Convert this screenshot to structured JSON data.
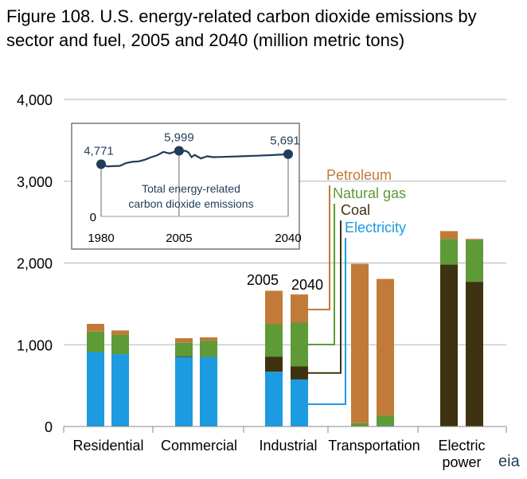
{
  "title": "Figure 108. U.S. energy-related carbon dioxide emissions by sector and fuel, 2005 and 2040 (million metric tons)",
  "logo_text": "eia",
  "colors": {
    "Petroleum": "#c27a38",
    "Natural gas": "#5e9a35",
    "Coal": "#3f3210",
    "Electricity": "#1c9be0",
    "inset_line": "#1f3d5a",
    "grid": "#b3b3b3"
  },
  "chart_data": {
    "type": "bar",
    "stacked": true,
    "categories": [
      "Residential",
      "Commercial",
      "Industrial",
      "Transportation",
      "Electric power"
    ],
    "category_lines": [
      [
        "Residential"
      ],
      [
        "Commercial"
      ],
      [
        "Industrial"
      ],
      [
        "Transportation"
      ],
      [
        "Electric",
        "power"
      ]
    ],
    "years": [
      "2005",
      "2040"
    ],
    "ylim": [
      0,
      4000
    ],
    "yticks": [
      0,
      1000,
      2000,
      3000,
      4000
    ],
    "ytick_labels": [
      "0",
      "1,000",
      "2,000",
      "3,000",
      "4,000"
    ],
    "stack_order": [
      "Electricity",
      "Coal",
      "Natural gas",
      "Petroleum"
    ],
    "legend_order": [
      "Petroleum",
      "Natural gas",
      "Coal",
      "Electricity"
    ],
    "bars": [
      {
        "sector": "Residential",
        "year": "2005",
        "Electricity": 910,
        "Coal": 0,
        "Natural gas": 250,
        "Petroleum": 95
      },
      {
        "sector": "Residential",
        "year": "2040",
        "Electricity": 885,
        "Coal": 0,
        "Natural gas": 235,
        "Petroleum": 55
      },
      {
        "sector": "Commercial",
        "year": "2005",
        "Electricity": 850,
        "Coal": 10,
        "Natural gas": 165,
        "Petroleum": 55
      },
      {
        "sector": "Commercial",
        "year": "2040",
        "Electricity": 850,
        "Coal": 5,
        "Natural gas": 195,
        "Petroleum": 40
      },
      {
        "sector": "Industrial",
        "year": "2005",
        "Electricity": 670,
        "Coal": 185,
        "Natural gas": 400,
        "Petroleum": 405
      },
      {
        "sector": "Industrial",
        "year": "2040",
        "Electricity": 575,
        "Coal": 160,
        "Natural gas": 535,
        "Petroleum": 345
      },
      {
        "sector": "Transportation",
        "year": "2005",
        "Electricity": 5,
        "Coal": 0,
        "Natural gas": 35,
        "Petroleum": 1950
      },
      {
        "sector": "Transportation",
        "year": "2040",
        "Electricity": 10,
        "Coal": 0,
        "Natural gas": 125,
        "Petroleum": 1670
      },
      {
        "sector": "Electric power",
        "year": "2005",
        "Electricity": 0,
        "Coal": 1980,
        "Natural gas": 315,
        "Petroleum": 95
      },
      {
        "sector": "Electric power",
        "year": "2040",
        "Electricity": 0,
        "Coal": 1770,
        "Natural gas": 510,
        "Petroleum": 15
      }
    ],
    "inset": {
      "type": "line",
      "series_label_lines": [
        "Total energy-related",
        "carbon dioxide emissions"
      ],
      "x_ticks": [
        "1980",
        "2005",
        "2040"
      ],
      "y_tick": "0",
      "xlim": [
        1980,
        2040
      ],
      "ylim": [
        0,
        8000
      ],
      "x": [
        1980,
        1982,
        1984,
        1986,
        1988,
        1990,
        1992,
        1994,
        1996,
        1998,
        2000,
        2002,
        2004,
        2005,
        2006,
        2007,
        2008,
        2009,
        2010,
        2012,
        2014,
        2016,
        2020,
        2025,
        2030,
        2035,
        2040
      ],
      "y": [
        4771,
        4570,
        4600,
        4620,
        4880,
        4990,
        5030,
        5180,
        5410,
        5590,
        5900,
        5760,
        5950,
        5999,
        5930,
        6010,
        5850,
        5420,
        5620,
        5300,
        5500,
        5420,
        5450,
        5500,
        5550,
        5610,
        5691
      ],
      "labeled_points": [
        {
          "x": 1980,
          "y": 4771,
          "label": "4,771"
        },
        {
          "x": 2005,
          "y": 5999,
          "label": "5,999"
        },
        {
          "x": 2040,
          "y": 5691,
          "label": "5,691"
        }
      ]
    }
  }
}
